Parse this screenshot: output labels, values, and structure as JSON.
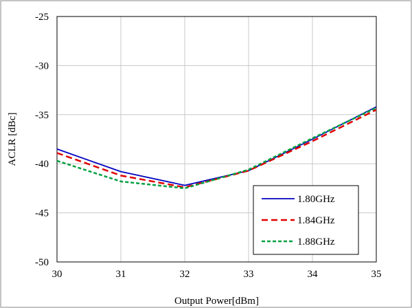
{
  "chart_data": {
    "type": "line",
    "title": "",
    "xlabel": "Output Power[dBm]",
    "ylabel": "ACLR [dBc]",
    "xlim": [
      30,
      35
    ],
    "ylim": [
      -50,
      -25
    ],
    "x_ticks": [
      30,
      31,
      32,
      33,
      34,
      35
    ],
    "y_ticks": [
      -50,
      -45,
      -40,
      -35,
      -30,
      -25
    ],
    "x_tick_labels": [
      "30",
      "31",
      "32",
      "33",
      "34",
      "35"
    ],
    "y_tick_labels": [
      "-50",
      "-45",
      "-40",
      "-35",
      "-30",
      "-25"
    ],
    "grid": true,
    "legend_position": "bottom-right",
    "series": [
      {
        "name": "1.80GHz",
        "color": "#0000c0",
        "style": "solid",
        "x": [
          30,
          31,
          32,
          33,
          34,
          35
        ],
        "values": [
          -38.5,
          -40.8,
          -42.2,
          -40.7,
          -37.5,
          -34.2
        ]
      },
      {
        "name": "1.84GHz",
        "color": "#e00000",
        "style": "dashed",
        "x": [
          30,
          31,
          32,
          33,
          34,
          35
        ],
        "values": [
          -38.9,
          -41.2,
          -42.4,
          -40.7,
          -37.7,
          -34.5
        ]
      },
      {
        "name": "1.88GHz",
        "color": "#00a040",
        "style": "dashed",
        "x": [
          30,
          31,
          32,
          33,
          34,
          35
        ],
        "values": [
          -39.7,
          -41.8,
          -42.5,
          -40.6,
          -37.4,
          -34.3
        ]
      }
    ]
  }
}
